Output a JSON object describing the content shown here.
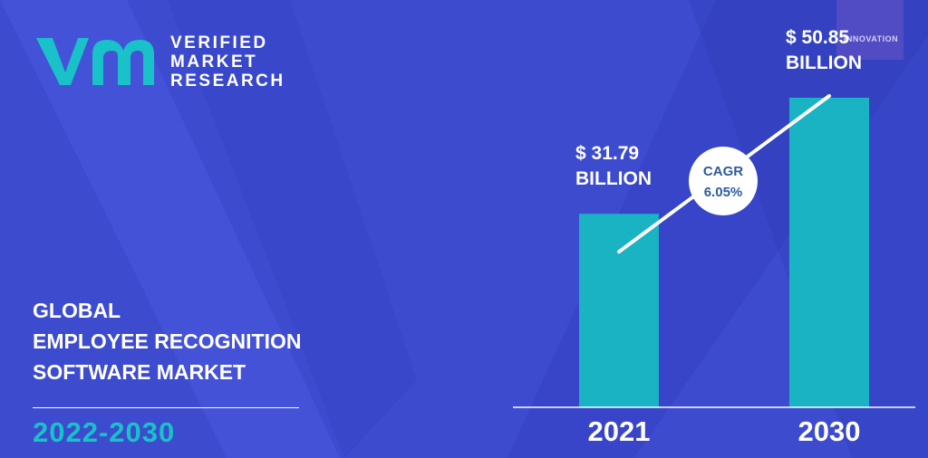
{
  "brand": {
    "line1": "VERIFIED",
    "line2": "MARKET",
    "line3": "RESEARCH",
    "badge_text": "INNOVATION"
  },
  "title": {
    "line1": "GLOBAL",
    "line2": "EMPLOYEE RECOGNITION",
    "line3": "SOFTWARE MARKET"
  },
  "forecast_period": "2022-2030",
  "colors": {
    "background": "#3d4bcf",
    "bar": "#19b3c4",
    "accent": "#19c1c8",
    "text": "#ffffff",
    "cagr_text": "#2c5a9e"
  },
  "chart_data": {
    "type": "bar",
    "categories": [
      "2021",
      "2030"
    ],
    "values": [
      31.79,
      50.85
    ],
    "value_labels": [
      [
        "$ 31.79",
        "BILLION"
      ],
      [
        "$ 50.85",
        "BILLION"
      ]
    ],
    "annotation": {
      "line1": "CAGR",
      "line2": "6.05%"
    },
    "grid": false,
    "legend": "none"
  }
}
